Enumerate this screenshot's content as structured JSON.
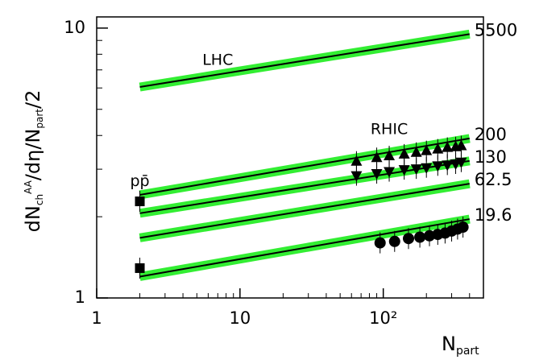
{
  "chart_data": {
    "type": "line",
    "x_label": [
      "N",
      "part"
    ],
    "y_label": [
      "dN",
      "ch",
      "AA",
      "/dη/N",
      "part",
      "/2"
    ],
    "xlog": true,
    "ylog": true,
    "xlim": [
      1,
      500
    ],
    "ylim": [
      1,
      11
    ],
    "xticks": [
      1,
      10,
      {
        "value": 100,
        "label": "10²"
      }
    ],
    "yticks": [
      1,
      {
        "value": 10,
        "label": "10"
      }
    ],
    "x_minor_ticks": [
      2,
      3,
      4,
      5,
      6,
      7,
      8,
      9,
      20,
      30,
      40,
      50,
      60,
      70,
      80,
      90,
      200,
      300,
      400
    ],
    "y_minor_ticks": [
      2,
      3,
      4,
      5,
      6,
      7,
      8,
      9
    ],
    "band_color": "#33ee33",
    "annotations": [
      {
        "text": "LHC",
        "x": 7,
        "y": 7.6
      },
      {
        "text": "RHIC",
        "x": 110,
        "y": 4.2
      },
      {
        "text": "pp̄",
        "x": 2,
        "y": 2.7
      }
    ],
    "series": [
      {
        "name": "5500",
        "color": "#000000",
        "style": "line",
        "x": [
          2,
          400
        ],
        "values": [
          6.05,
          9.5
        ]
      },
      {
        "name": "200",
        "color": "#000000",
        "style": "line",
        "x": [
          2,
          400
        ],
        "values": [
          2.41,
          3.9
        ]
      },
      {
        "name": "130",
        "color": "#000000",
        "style": "line",
        "x": [
          2,
          400
        ],
        "values": [
          2.06,
          3.22
        ]
      },
      {
        "name": "62.5",
        "color": "#000000",
        "style": "line",
        "x": [
          2,
          400
        ],
        "values": [
          1.67,
          2.65
        ]
      },
      {
        "name": "19.6",
        "color": "#000000",
        "style": "line",
        "x": [
          2,
          400
        ],
        "values": [
          1.2,
          1.96
        ]
      },
      {
        "color": "#000000",
        "style": "square",
        "x": [
          2,
          2
        ],
        "values": [
          2.28,
          1.29
        ]
      },
      {
        "color": "#000000",
        "style": "triangle",
        "x": [
          65,
          90,
          110,
          140,
          170,
          200,
          240,
          280,
          320,
          350
        ],
        "values": [
          3.2,
          3.3,
          3.35,
          3.4,
          3.45,
          3.5,
          3.55,
          3.6,
          3.62,
          3.65
        ]
      },
      {
        "color": "#000000",
        "style": "triangle-down",
        "x": [
          65,
          90,
          110,
          140,
          170,
          200,
          240,
          280,
          320,
          350
        ],
        "values": [
          2.85,
          2.9,
          2.95,
          3.0,
          3.02,
          3.05,
          3.1,
          3.12,
          3.15,
          3.2
        ]
      },
      {
        "color": "#000000",
        "style": "circle",
        "x": [
          95,
          120,
          150,
          180,
          210,
          240,
          270,
          300,
          330,
          360
        ],
        "values": [
          1.6,
          1.62,
          1.66,
          1.68,
          1.7,
          1.72,
          1.74,
          1.77,
          1.8,
          1.83
        ]
      }
    ]
  }
}
